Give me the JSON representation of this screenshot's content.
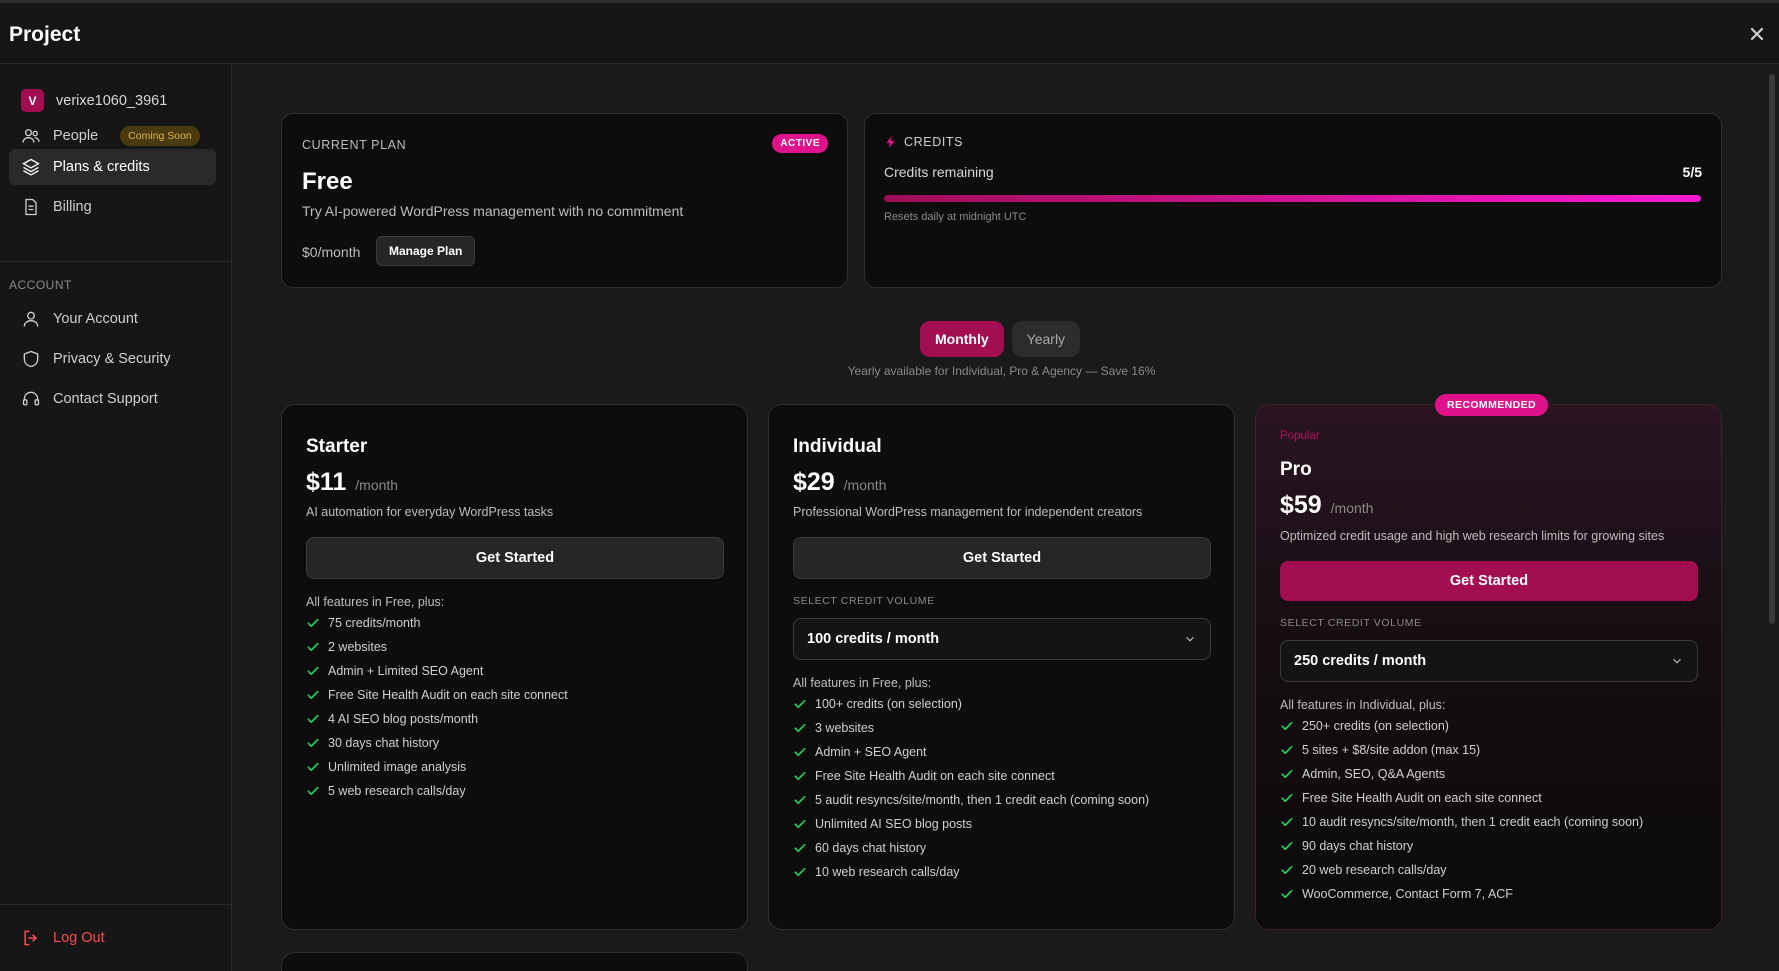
{
  "window": {
    "title": "Project",
    "close_icon": "close-icon"
  },
  "sidebar": {
    "user": {
      "initial": "V",
      "name": "verixe1060_3961"
    },
    "items": [
      {
        "label": "People",
        "badge": "Coming Soon",
        "icon": "people-icon"
      },
      {
        "label": "Plans & credits",
        "icon": "layers-icon",
        "active": true
      },
      {
        "label": "Billing",
        "icon": "document-icon"
      }
    ],
    "account_label": "ACCOUNT",
    "account_items": [
      {
        "label": "Your Account",
        "icon": "user-icon"
      },
      {
        "label": "Privacy & Security",
        "icon": "shield-icon"
      },
      {
        "label": "Contact Support",
        "icon": "headset-icon"
      }
    ],
    "logout": "Log Out"
  },
  "current_plan": {
    "label": "CURRENT PLAN",
    "status": "ACTIVE",
    "name": "Free",
    "description": "Try AI-powered WordPress management with no commitment",
    "price": "$0/month",
    "manage_label": "Manage Plan"
  },
  "credits": {
    "label": "CREDITS",
    "remaining_label": "Credits remaining",
    "count": "5/5",
    "fill_fraction": 1.0,
    "reset_note": "Resets daily at midnight UTC"
  },
  "billing_toggle": {
    "monthly": "Monthly",
    "yearly": "Yearly",
    "selected": "Monthly",
    "note": "Yearly available for Individual, Pro & Agency — Save 16%"
  },
  "tiers": [
    {
      "name": "Starter",
      "price": "$11",
      "period": "/month",
      "description": "AI automation for everyday WordPress tasks",
      "cta": "Get Started",
      "features_head": "All features in Free, plus:",
      "features": [
        "75 credits/month",
        "2 websites",
        "Admin + Limited SEO Agent",
        "Free Site Health Audit on each site connect",
        "4 AI SEO blog posts/month",
        "30 days chat history",
        "Unlimited image analysis",
        "5 web research calls/day"
      ]
    },
    {
      "name": "Individual",
      "price": "$29",
      "period": "/month",
      "description": "Professional WordPress management for independent creators",
      "cta": "Get Started",
      "volume_label": "SELECT CREDIT VOLUME",
      "volume": "100 credits / month",
      "features_head": "All features in Free, plus:",
      "features": [
        "100+ credits (on selection)",
        "3 websites",
        "Admin + SEO Agent",
        "Free Site Health Audit on each site connect",
        "5 audit resyncs/site/month, then 1 credit each (coming soon)",
        "Unlimited AI SEO blog posts",
        "60 days chat history",
        "10 web research calls/day"
      ]
    },
    {
      "name": "Pro",
      "badge": "RECOMMENDED",
      "tag": "Popular",
      "price": "$59",
      "period": "/month",
      "description": "Optimized credit usage and high web research limits for growing sites",
      "cta": "Get Started",
      "volume_label": "SELECT CREDIT VOLUME",
      "volume": "250 credits / month",
      "features_head": "All features in Individual, plus:",
      "features": [
        "250+ credits (on selection)",
        "5 sites + $8/site addon (max 15)",
        "Admin, SEO, Q&A Agents",
        "Free Site Health Audit on each site connect",
        "10 audit resyncs/site/month, then 1 credit each (coming soon)",
        "90 days chat history",
        "20 web research calls/day",
        "WooCommerce, Contact Form 7, ACF"
      ]
    }
  ],
  "colors": {
    "accent": "#a30d52",
    "accent_bright": "#e0128b",
    "check": "#22c55e",
    "logout": "#ff4d4d"
  }
}
